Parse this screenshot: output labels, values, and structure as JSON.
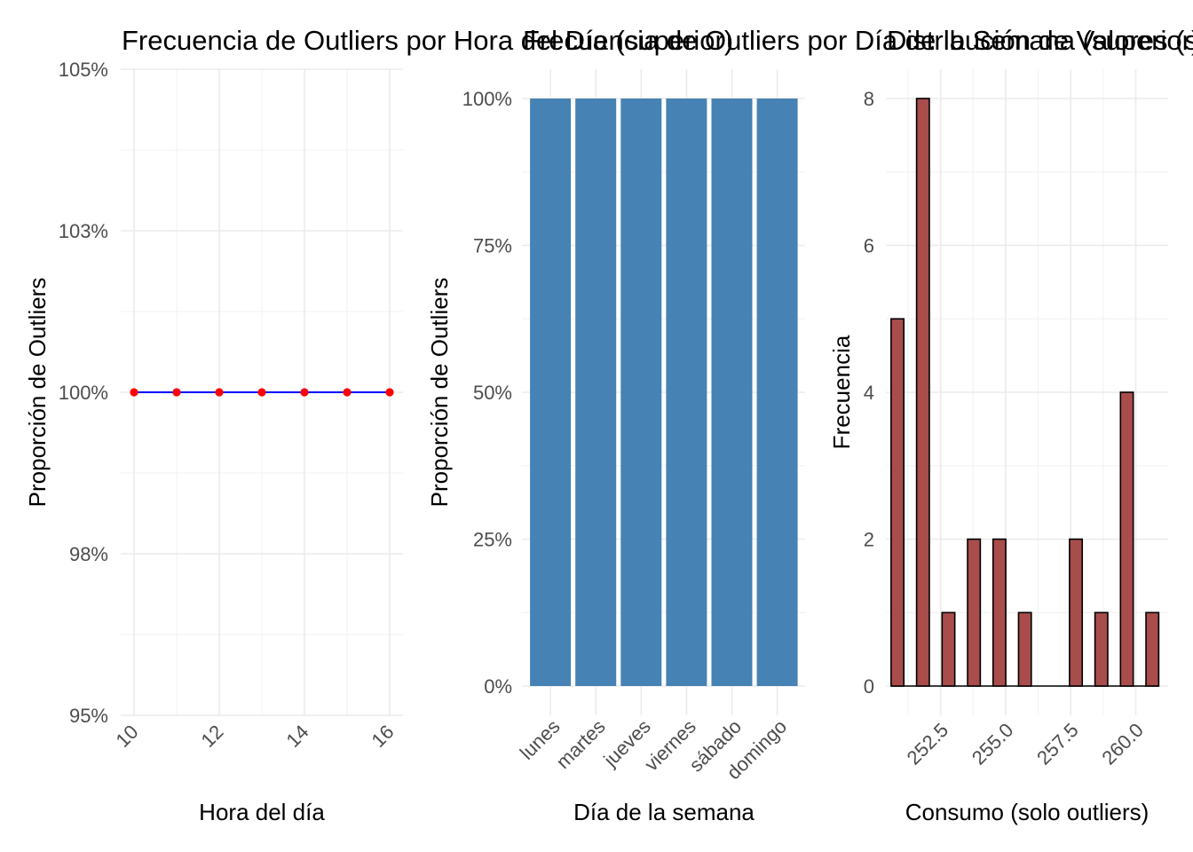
{
  "chart_data": [
    {
      "type": "line",
      "title": "Frecuencia de Outliers por Hora del Día (superior)",
      "xlabel": "Hora del día",
      "ylabel": "Proporción de Outliers",
      "x": [
        10,
        11,
        12,
        13,
        14,
        15,
        16
      ],
      "y": [
        1,
        1,
        1,
        1,
        1,
        1,
        1
      ],
      "xticks": [
        10,
        12,
        14,
        16
      ],
      "xtick_labels": [
        "10",
        "12",
        "14",
        "16"
      ],
      "yticks": [
        0.95,
        0.975,
        1.0,
        1.025,
        1.05
      ],
      "ytick_labels": [
        "95%",
        "98%",
        "100%",
        "103%",
        "105%"
      ],
      "ylim": [
        0.95,
        1.05
      ],
      "line_color": "#0000ff",
      "point_color": "#ff0000",
      "grid": true
    },
    {
      "type": "bar",
      "title": "Frecuencia de Outliers por Día de la Semana (superior)",
      "xlabel": "Día de la semana",
      "ylabel": "Proporción de Outliers",
      "categories": [
        "lunes",
        "martes",
        "jueves",
        "viernes",
        "sábado",
        "domingo"
      ],
      "values": [
        1,
        1,
        1,
        1,
        1,
        1
      ],
      "yticks": [
        0,
        0.25,
        0.5,
        0.75,
        1.0
      ],
      "ytick_labels": [
        "0%",
        "25%",
        "50%",
        "75%",
        "100%"
      ],
      "ylim": [
        0,
        1
      ],
      "bar_color": "#4682b4",
      "grid": true
    },
    {
      "type": "bar",
      "title": "Distribución de Valores (superior)",
      "xlabel": "Consumo (solo outliers)",
      "ylabel": "Frecuencia",
      "bin_centers": [
        250.84,
        251.82,
        252.8,
        253.78,
        254.76,
        255.74,
        256.72,
        257.7,
        258.68,
        259.66,
        260.64
      ],
      "values": [
        5,
        8,
        1,
        2,
        2,
        1,
        0,
        2,
        1,
        4,
        1
      ],
      "xticks": [
        252.5,
        255.0,
        257.5,
        260.0
      ],
      "xtick_labels": [
        "252.5",
        "255.0",
        "257.5",
        "260.0"
      ],
      "yticks": [
        0,
        2,
        4,
        6,
        8
      ],
      "ytick_labels": [
        "0",
        "2",
        "4",
        "6",
        "8"
      ],
      "ylim": [
        0,
        8
      ],
      "bar_color": "#a94c4c",
      "grid": true
    }
  ]
}
